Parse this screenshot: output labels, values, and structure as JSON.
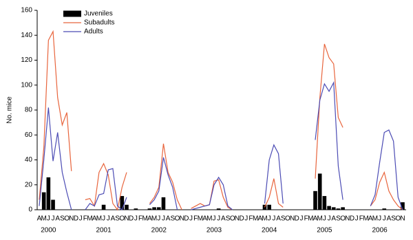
{
  "chart_data": {
    "type": "bar-line",
    "y_label": "No. mice",
    "categories": [
      "A",
      "M",
      "J",
      "J",
      "A",
      "S",
      "O",
      "N",
      "D",
      "J",
      "F",
      "M",
      "A",
      "M",
      "J",
      "J",
      "A",
      "S",
      "O",
      "N",
      "D",
      "J",
      "F",
      "M",
      "A",
      "M",
      "J",
      "J",
      "A",
      "S",
      "O",
      "N",
      "D",
      "J",
      "F",
      "M",
      "A",
      "M",
      "J",
      "J",
      "A",
      "S",
      "O",
      "N",
      "D",
      "J",
      "F",
      "M",
      "A",
      "M",
      "J",
      "J",
      "A",
      "S",
      "O",
      "N",
      "D",
      "J",
      "F",
      "M",
      "A",
      "M",
      "J",
      "J",
      "A",
      "S",
      "O",
      "N",
      "D",
      "J",
      "F",
      "M",
      "A",
      "M",
      "J",
      "J",
      "A",
      "S",
      "O",
      "N"
    ],
    "year_labels": [
      "2000",
      "2001",
      "2002",
      "2003",
      "2004",
      "2005",
      "2006"
    ],
    "ylim": [
      0,
      160
    ],
    "yticks": [
      0,
      20,
      40,
      60,
      80,
      100,
      120,
      140,
      160
    ],
    "legend": "upper left",
    "series": [
      {
        "name": "Juveniles",
        "type": "bar",
        "color": "#000000",
        "values": [
          null,
          14,
          26,
          8,
          null,
          null,
          null,
          null,
          null,
          null,
          null,
          null,
          null,
          null,
          4,
          null,
          null,
          null,
          11,
          4,
          null,
          1,
          null,
          null,
          1,
          2,
          2,
          10,
          null,
          null,
          null,
          null,
          null,
          null,
          null,
          null,
          null,
          null,
          null,
          1,
          null,
          null,
          null,
          null,
          null,
          null,
          null,
          null,
          null,
          4,
          4,
          null,
          null,
          null,
          null,
          null,
          null,
          null,
          null,
          null,
          15,
          29,
          11,
          3,
          2,
          1,
          2,
          null,
          null,
          null,
          null,
          null,
          null,
          null,
          null,
          1,
          null,
          null,
          null,
          6
        ]
      },
      {
        "name": "Subadults",
        "type": "line",
        "color": "#e8643c",
        "values": [
          8,
          50,
          136,
          143,
          90,
          68,
          78,
          31,
          null,
          null,
          8,
          9,
          3,
          30,
          37,
          28,
          5,
          0,
          18,
          30,
          null,
          null,
          null,
          null,
          5,
          10,
          18,
          53,
          30,
          22,
          8,
          0,
          null,
          1,
          3,
          5,
          3,
          4,
          23,
          24,
          10,
          2,
          0,
          null,
          null,
          null,
          null,
          null,
          null,
          2,
          10,
          25,
          5,
          2,
          null,
          null,
          null,
          null,
          null,
          null,
          25,
          90,
          133,
          122,
          117,
          74,
          66,
          null,
          null,
          null,
          null,
          null,
          3,
          8,
          22,
          30,
          15,
          8,
          3,
          0
        ]
      },
      {
        "name": "Adults",
        "type": "line",
        "color": "#4b4bb4",
        "values": [
          3,
          40,
          82,
          39,
          62,
          30,
          14,
          0,
          null,
          null,
          0,
          5,
          3,
          12,
          13,
          32,
          33,
          3,
          0,
          10,
          null,
          null,
          null,
          null,
          4,
          8,
          15,
          42,
          28,
          18,
          0,
          null,
          null,
          0,
          1,
          2,
          3,
          4,
          20,
          26,
          20,
          3,
          0,
          null,
          null,
          null,
          null,
          null,
          null,
          5,
          40,
          52,
          45,
          5,
          null,
          null,
          null,
          null,
          null,
          null,
          56,
          88,
          101,
          95,
          102,
          35,
          8,
          null,
          null,
          null,
          null,
          null,
          3,
          12,
          38,
          62,
          64,
          55,
          10,
          0
        ]
      }
    ]
  }
}
